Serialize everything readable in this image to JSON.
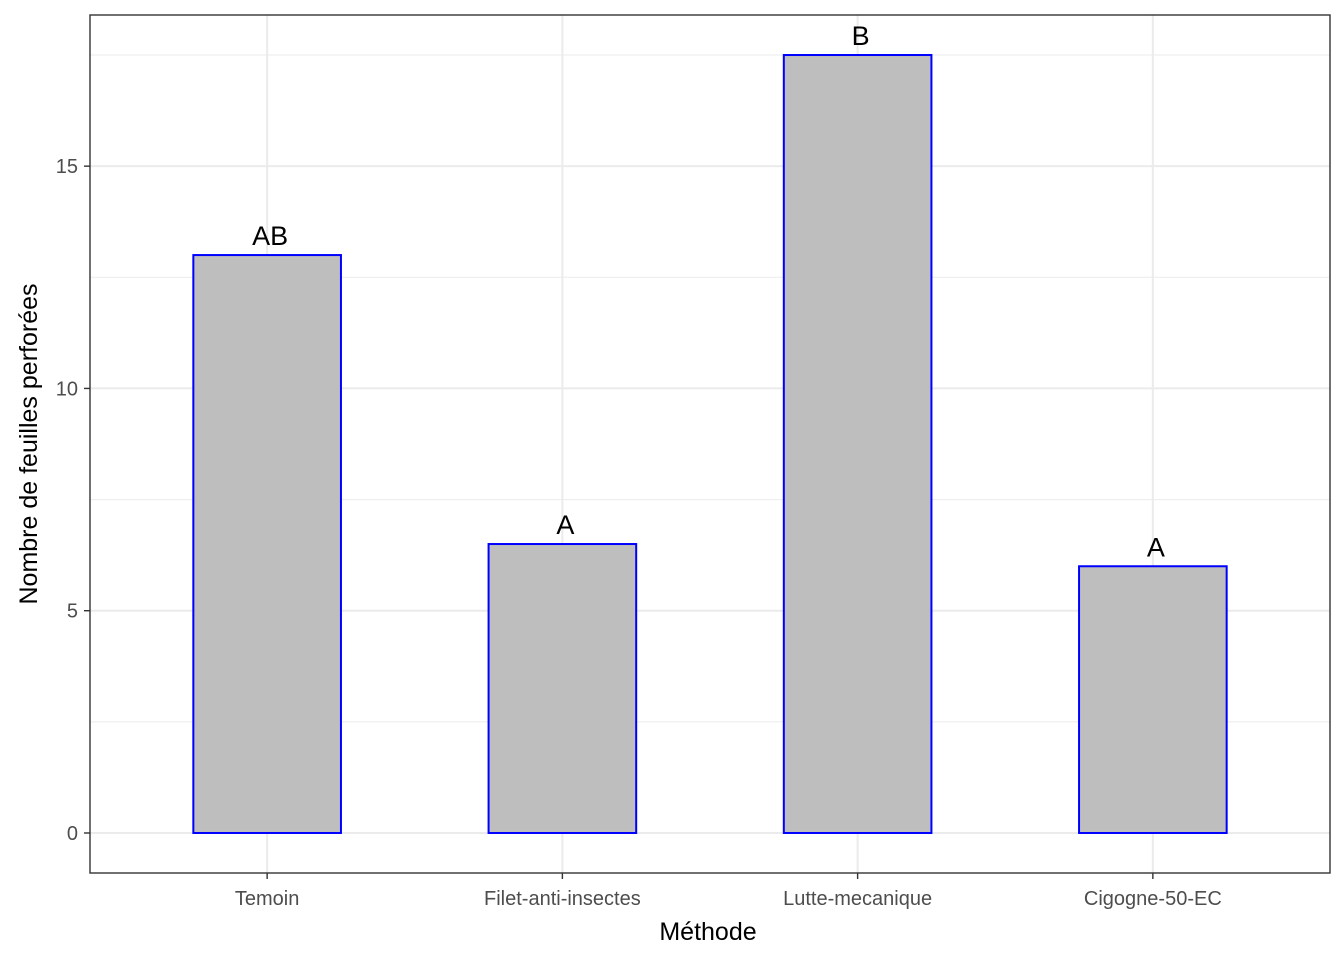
{
  "chart_data": {
    "type": "bar",
    "categories": [
      "Temoin",
      "Filet-anti-insectes",
      "Lutte-mecanique",
      "Cigogne-50-EC"
    ],
    "values": [
      13.0,
      6.5,
      17.5,
      6.0
    ],
    "bar_labels": [
      "AB",
      "A",
      "B",
      "A"
    ],
    "title": "",
    "xlabel": "Méthode",
    "ylabel": "Nombre de feuilles perforées",
    "ylim": [
      -0.9,
      18.4
    ],
    "yticks": [
      0,
      5,
      10,
      15
    ],
    "yticks_minor": [
      2.5,
      7.5,
      12.5,
      17.5
    ],
    "grid": true,
    "bar_fill": "#bebebe",
    "bar_stroke": "#0000ff"
  }
}
